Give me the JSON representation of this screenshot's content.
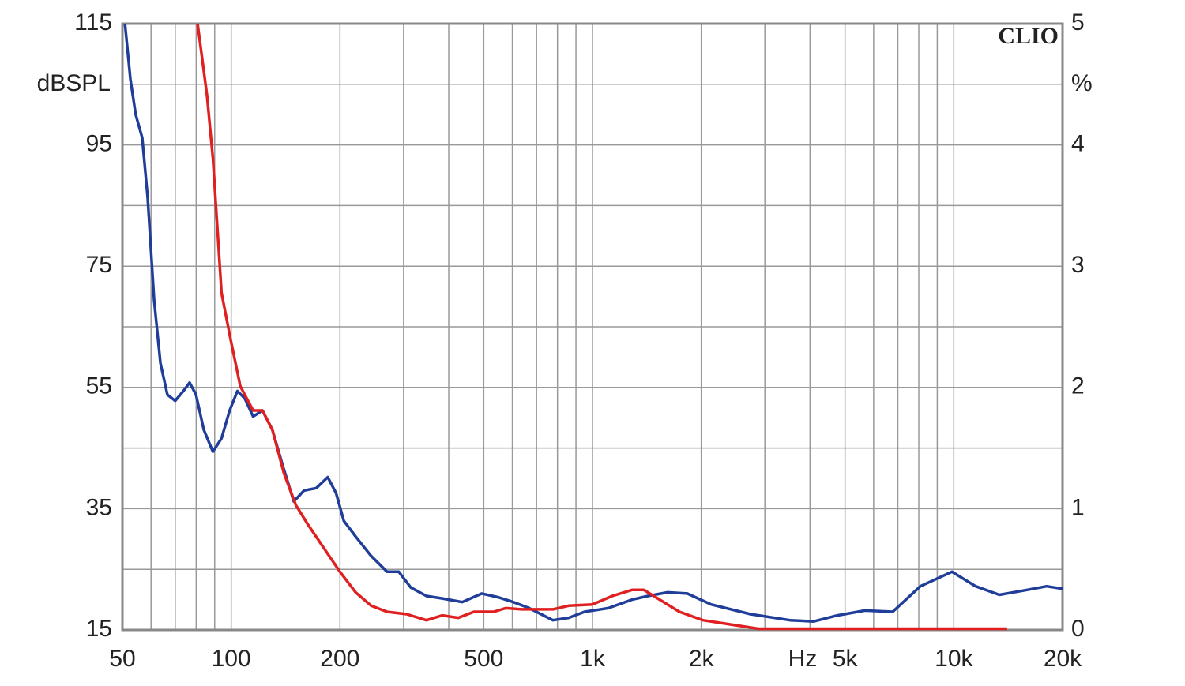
{
  "chart_data": {
    "type": "line",
    "brand": "CLIO",
    "ylabel": "dBSPL",
    "y2label": "%",
    "xlabel": "Hz",
    "xscale": "log",
    "xlim": [
      50,
      20000
    ],
    "xticks": [
      50,
      100,
      200,
      500,
      {
        "value": 1000,
        "label": "1k"
      },
      {
        "value": 2000,
        "label": "2k"
      },
      {
        "value": 5000,
        "label": "5k"
      },
      {
        "value": 10000,
        "label": "10k"
      },
      {
        "value": 20000,
        "label": "20k"
      }
    ],
    "x_minor_ticks": [
      60,
      70,
      80,
      90,
      300,
      400,
      600,
      700,
      800,
      900,
      3000,
      4000,
      6000,
      7000,
      8000,
      9000
    ],
    "ylim": [
      15,
      115
    ],
    "yticks": [
      15,
      35,
      55,
      75,
      95,
      115
    ],
    "y_minor_ticks": [
      25,
      45,
      65,
      85,
      105
    ],
    "y2lim": [
      0,
      5
    ],
    "y2ticks": [
      0,
      1,
      2,
      3,
      4,
      5
    ],
    "grid": true,
    "series": [
      {
        "color": "#1f3d99",
        "axis": "y2",
        "x": [
          50.8,
          52.6,
          54.4,
          56.7,
          58.7,
          61.2,
          63.7,
          66.6,
          70,
          73.7,
          76.7,
          79.9,
          84,
          89,
          94,
          99,
          104,
          109,
          115,
          122,
          130,
          139,
          149,
          159,
          172,
          185,
          195,
          205,
          221,
          244,
          270,
          291,
          314,
          347,
          384,
          436,
          494,
          547,
          604,
          668,
          777,
          860,
          951,
          1106,
          1287,
          1423,
          1614,
          1830,
          2129,
          2737,
          3520,
          4095,
          4764,
          5680,
          6776,
          8080,
          9885,
          11495,
          13370,
          15950,
          18075,
          20000
        ],
        "values": [
          5.0,
          4.54,
          4.25,
          4.06,
          3.57,
          2.72,
          2.2,
          1.94,
          1.89,
          1.97,
          2.04,
          1.94,
          1.65,
          1.47,
          1.58,
          1.81,
          1.97,
          1.91,
          1.76,
          1.81,
          1.65,
          1.35,
          1.06,
          1.15,
          1.17,
          1.26,
          1.13,
          0.9,
          0.77,
          0.61,
          0.48,
          0.48,
          0.35,
          0.28,
          0.26,
          0.23,
          0.3,
          0.27,
          0.23,
          0.18,
          0.08,
          0.1,
          0.15,
          0.18,
          0.25,
          0.28,
          0.31,
          0.3,
          0.21,
          0.13,
          0.08,
          0.07,
          0.12,
          0.16,
          0.15,
          0.36,
          0.48,
          0.36,
          0.29,
          0.33,
          0.36,
          0.34
        ]
      },
      {
        "color": "#e02020",
        "axis": "y2",
        "x": [
          80.7,
          85.7,
          89,
          94,
          99.7,
          106,
          115,
          122,
          130,
          140,
          151,
          163,
          181,
          200,
          221,
          244,
          270,
          306,
          347,
          384,
          425,
          470,
          533,
          575,
          636,
          777,
          860,
          1000,
          1134,
          1287,
          1387,
          1534,
          1740,
          2024,
          2476,
          2878,
          3702,
          5824,
          8283,
          9638,
          14050
        ],
        "values": [
          5.0,
          4.41,
          3.89,
          2.78,
          2.39,
          2.01,
          1.81,
          1.81,
          1.65,
          1.29,
          1.03,
          0.87,
          0.67,
          0.48,
          0.31,
          0.2,
          0.15,
          0.13,
          0.08,
          0.12,
          0.1,
          0.15,
          0.15,
          0.18,
          0.17,
          0.17,
          0.2,
          0.21,
          0.28,
          0.33,
          0.33,
          0.25,
          0.15,
          0.08,
          0.04,
          0.01,
          0.01,
          0.01,
          0.01,
          0.01,
          0.01
        ]
      }
    ]
  }
}
